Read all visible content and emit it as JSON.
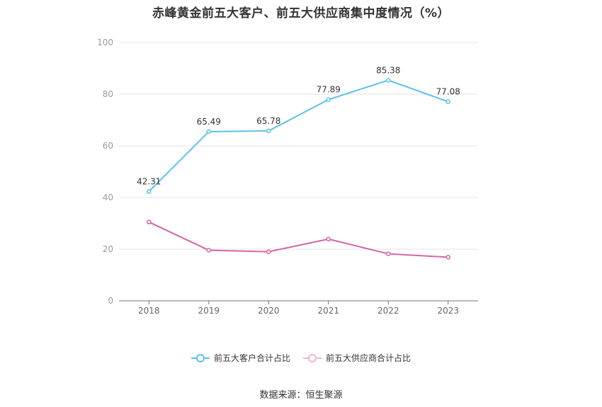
{
  "chart_data": {
    "type": "line",
    "title": "赤峰黄金前五大客户、前五大供应商集中度情况（%）",
    "categories": [
      "2018",
      "2019",
      "2020",
      "2021",
      "2022",
      "2023"
    ],
    "series": [
      {
        "name": "前五大客户合计占比",
        "color": "#5bc0eb",
        "values": [
          42.31,
          65.49,
          65.78,
          77.89,
          85.38,
          77.08
        ],
        "show_labels": true
      },
      {
        "name": "前五大供应商合计占比",
        "color": "#d465a6",
        "values": [
          30.5,
          19.6,
          19.0,
          23.9,
          18.2,
          16.9
        ],
        "show_labels": false
      }
    ],
    "ylim": [
      0,
      100
    ],
    "yticks": [
      0,
      20,
      40,
      60,
      80,
      100
    ],
    "grid": true,
    "legend_position": "bottom"
  },
  "source": "数据来源：恒生聚源"
}
